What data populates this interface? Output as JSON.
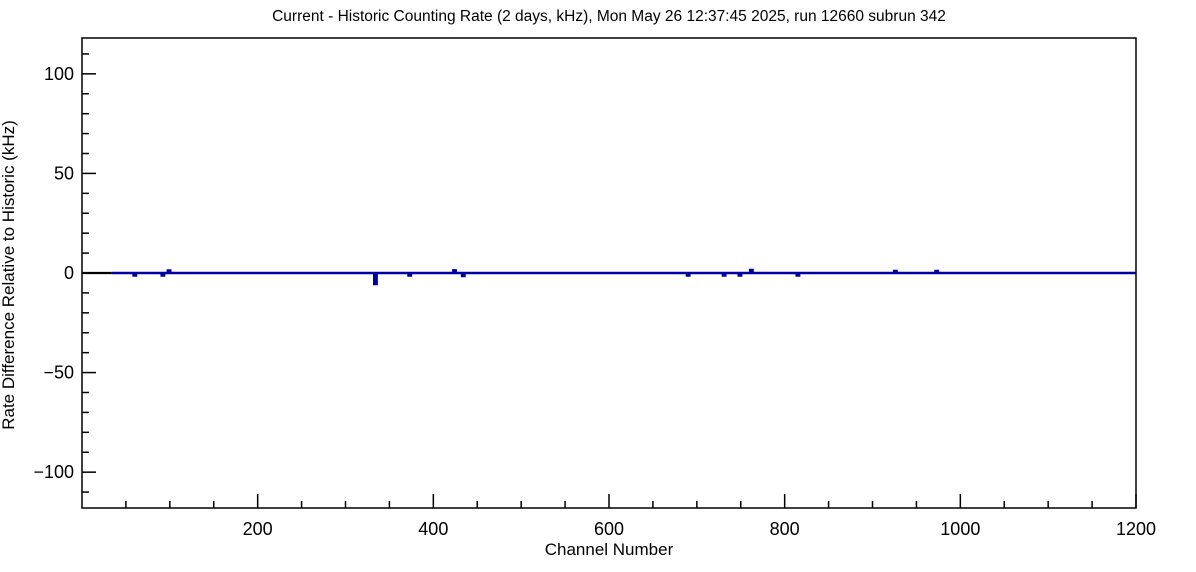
{
  "window": {
    "background_color": "#ffffff"
  },
  "chart_data": {
    "type": "line",
    "subtype": "histogram-step",
    "title": "Current - Historic Counting Rate (2 days, kHz), Mon May 26 12:37:45 2025, run 12660 subrun 342",
    "xlabel": "Channel Number",
    "ylabel": "Rate Difference Relative to Historic (kHz)",
    "xlim": [
      0,
      1200
    ],
    "ylim": [
      -118,
      118
    ],
    "x_major_ticks": [
      200,
      400,
      600,
      800,
      1000,
      1200
    ],
    "x_major_tick_labels": [
      "200",
      "400",
      "600",
      "800",
      "1000",
      "1200"
    ],
    "x_minor_step": 50,
    "y_major_ticks": [
      -100,
      -50,
      0,
      50,
      100
    ],
    "y_major_tick_labels": [
      "−100",
      "−50",
      "0",
      "50",
      "100"
    ],
    "y_minor_step": 10,
    "grid": false,
    "legend": "none",
    "frame_color": "#000000",
    "line_color": "#0000a0",
    "lead_segment_color": "#000000",
    "series": [
      {
        "name": "rate-difference-current-minus-historic",
        "baseline_value": 0,
        "lead_segment": {
          "start_channel": 0,
          "end_channel": 34,
          "value": 0
        },
        "plot_start_channel": 34,
        "plot_end_channel": 1200,
        "spikes": [
          {
            "channel": 60,
            "value": -1.2
          },
          {
            "channel": 92,
            "value": -1.2
          },
          {
            "channel": 99,
            "value": 1.2
          },
          {
            "channel": 334,
            "value": -5.5
          },
          {
            "channel": 373,
            "value": -1.2
          },
          {
            "channel": 424,
            "value": 1.3
          },
          {
            "channel": 434,
            "value": -1.5
          },
          {
            "channel": 690,
            "value": -1.2
          },
          {
            "channel": 731,
            "value": -1.2
          },
          {
            "channel": 749,
            "value": -1.2
          },
          {
            "channel": 762,
            "value": 1.5
          },
          {
            "channel": 815,
            "value": -1.2
          },
          {
            "channel": 926,
            "value": 1.0
          },
          {
            "channel": 973,
            "value": 1.0
          }
        ]
      }
    ]
  }
}
